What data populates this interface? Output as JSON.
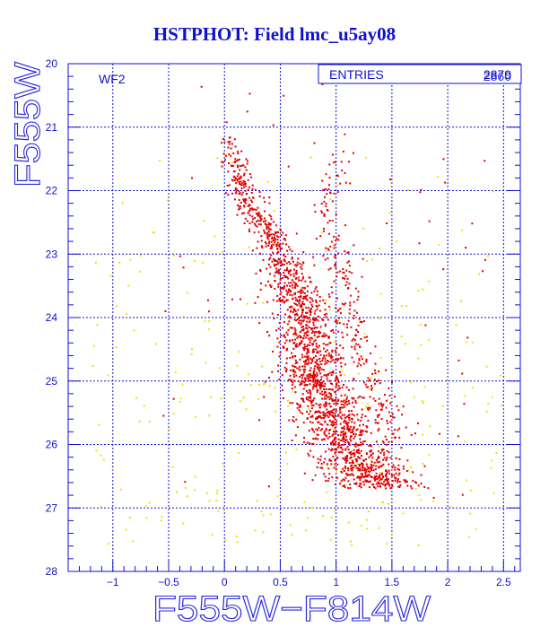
{
  "chart_data": {
    "type": "scatter",
    "title": "HSTPHOT: Field lmc_u5ay08",
    "xlabel": "F555W−F814W",
    "ylabel": "F555W",
    "xlim": [
      -1.4,
      2.65
    ],
    "ylim": [
      28,
      20
    ],
    "y_inverted": true,
    "x_ticks": [
      -1,
      -0.5,
      0,
      0.5,
      1,
      1.5,
      2,
      2.5
    ],
    "x_tick_labels": [
      "−1",
      "−0.5",
      "0",
      "0.5",
      "1",
      "1.5",
      "2",
      "2.5"
    ],
    "y_ticks": [
      20,
      21,
      22,
      23,
      24,
      25,
      26,
      27,
      28
    ],
    "y_tick_labels": [
      "20",
      "21",
      "22",
      "23",
      "24",
      "25",
      "26",
      "27",
      "28"
    ],
    "grid": true,
    "chip_label": "WF2",
    "stats_box": {
      "label": "ENTRIES",
      "value_a": "2879",
      "value_b": "2860"
    },
    "series": [
      {
        "name": "",
        "color": "#e00000",
        "description_only": false,
        "main_sequence_ridge": [
          {
            "mag": 21.0,
            "color": 0.02
          },
          {
            "mag": 22.0,
            "color": 0.15
          },
          {
            "mag": 23.0,
            "color": 0.5
          },
          {
            "mag": 24.0,
            "color": 0.7
          },
          {
            "mag": 25.0,
            "color": 0.82
          },
          {
            "mag": 26.0,
            "color": 1.1
          },
          {
            "mag": 26.6,
            "color": 1.35
          }
        ],
        "giant_branch_ridge": [
          {
            "mag": 21.1,
            "color": 1.02
          },
          {
            "mag": 22.5,
            "color": 0.95
          },
          {
            "mag": 24.5,
            "color": 1.2
          },
          {
            "mag": 26.0,
            "color": 1.55
          }
        ]
      },
      {
        "name": "",
        "color": "#f0e000",
        "field_range_color": [
          -1.2,
          2.5
        ],
        "field_range_mag": [
          21.2,
          27.6
        ]
      }
    ],
    "n_points_drawn": 0
  }
}
